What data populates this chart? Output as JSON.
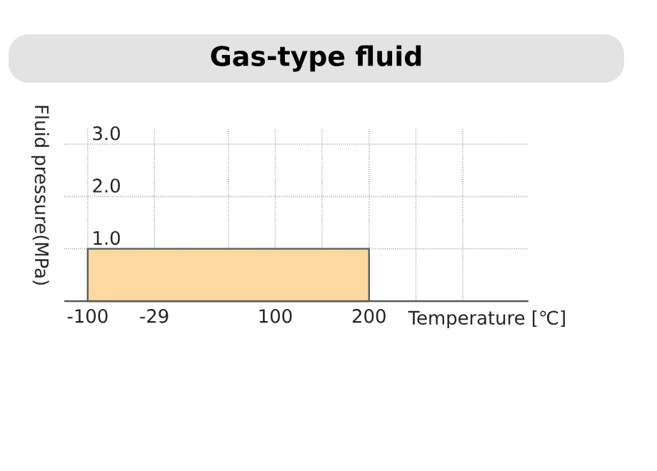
{
  "chart_data": {
    "type": "area",
    "title": "Gas-type fluid",
    "xlabel": "Temperature [℃]",
    "ylabel": "Fluid pressure(MPa)",
    "x": [
      -100,
      200
    ],
    "values": [
      1.0,
      1.0
    ],
    "color": "#fcd9a0",
    "xlim": [
      -125,
      370
    ],
    "ylim": [
      0,
      3.3
    ],
    "xticks": [
      -100,
      -29,
      {
        "value": 50,
        "label": null
      },
      100,
      {
        "value": 150,
        "label": null
      },
      200,
      {
        "value": 250,
        "label": null
      },
      {
        "value": 300,
        "label": null
      }
    ],
    "yticks": [
      {
        "value": 1,
        "label": "1.0"
      },
      {
        "value": 2,
        "label": "2.0"
      },
      {
        "value": 3,
        "label": "3.0"
      }
    ],
    "grid": true
  }
}
